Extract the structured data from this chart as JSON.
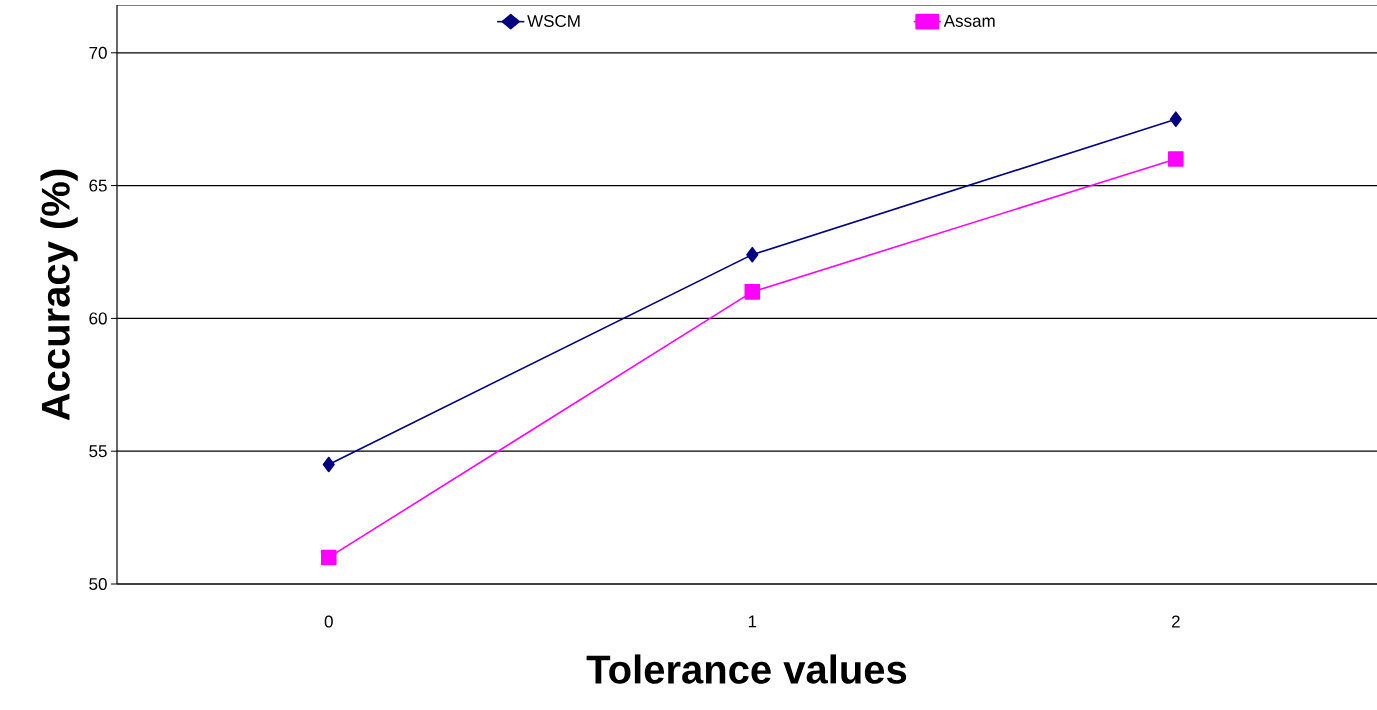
{
  "chart_data": {
    "type": "line",
    "xlabel": "Tolerance values",
    "ylabel": "Accuracy (%)",
    "categories": [
      "0",
      "1",
      "2"
    ],
    "series": [
      {
        "name": "WSCM",
        "color": "#000080",
        "marker": "diamond",
        "values": [
          54.5,
          62.4,
          67.5
        ]
      },
      {
        "name": "Assam",
        "color": "#ff00ff",
        "marker": "square",
        "values": [
          51,
          61,
          66
        ]
      }
    ],
    "ylim": [
      50,
      71.8
    ],
    "yticks": [
      50,
      55,
      60,
      65,
      70
    ],
    "grid": "y",
    "legend": "top",
    "line_style": "solid"
  }
}
